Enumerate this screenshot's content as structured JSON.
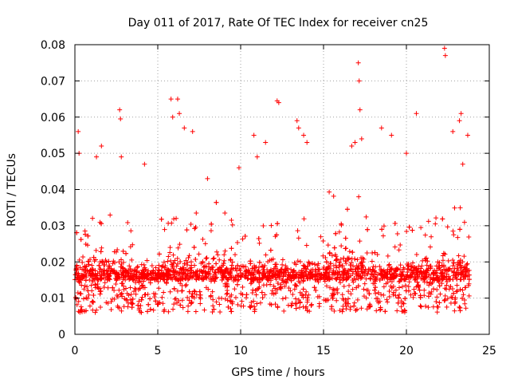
{
  "chart_data": {
    "type": "scatter",
    "title": "Day 011 of 2017, Rate Of TEC Index for receiver cn25",
    "xlabel": "GPS time / hours",
    "ylabel": "ROTI / TECUs",
    "xlim": [
      0,
      25
    ],
    "ylim": [
      0,
      0.08
    ],
    "x_ticks": [
      0,
      5,
      10,
      15,
      20,
      25
    ],
    "x_tick_labels": [
      "0",
      "5",
      "10",
      "15",
      "20",
      "25"
    ],
    "y_ticks": [
      0,
      0.01,
      0.02,
      0.03,
      0.04,
      0.05,
      0.06,
      0.07,
      0.08
    ],
    "y_tick_labels": [
      "0",
      "0.01",
      "0.02",
      "0.03",
      "0.04",
      "0.05",
      "0.06",
      "0.07",
      "0.08"
    ],
    "grid": true,
    "marker": "+",
    "series": [
      {
        "name": "ROTI",
        "color": "#ff0000",
        "x_range": [
          0,
          23.8
        ],
        "typical_range": [
          0.005,
          0.03
        ],
        "outliers": [
          {
            "x": 0.2,
            "y": 0.056
          },
          {
            "x": 0.25,
            "y": 0.05
          },
          {
            "x": 1.3,
            "y": 0.049
          },
          {
            "x": 1.6,
            "y": 0.052
          },
          {
            "x": 2.7,
            "y": 0.062
          },
          {
            "x": 2.75,
            "y": 0.0595
          },
          {
            "x": 2.8,
            "y": 0.049
          },
          {
            "x": 5.8,
            "y": 0.065
          },
          {
            "x": 5.9,
            "y": 0.06
          },
          {
            "x": 6.2,
            "y": 0.065
          },
          {
            "x": 6.3,
            "y": 0.061
          },
          {
            "x": 6.6,
            "y": 0.057
          },
          {
            "x": 7.1,
            "y": 0.056
          },
          {
            "x": 9.9,
            "y": 0.046
          },
          {
            "x": 10.8,
            "y": 0.055
          },
          {
            "x": 11.5,
            "y": 0.053
          },
          {
            "x": 12.2,
            "y": 0.0645
          },
          {
            "x": 12.3,
            "y": 0.064
          },
          {
            "x": 13.4,
            "y": 0.059
          },
          {
            "x": 13.5,
            "y": 0.057
          },
          {
            "x": 13.8,
            "y": 0.055
          },
          {
            "x": 14.0,
            "y": 0.053
          },
          {
            "x": 16.7,
            "y": 0.052
          },
          {
            "x": 16.9,
            "y": 0.053
          },
          {
            "x": 17.1,
            "y": 0.075
          },
          {
            "x": 17.15,
            "y": 0.07
          },
          {
            "x": 17.2,
            "y": 0.062
          },
          {
            "x": 17.3,
            "y": 0.054
          },
          {
            "x": 18.5,
            "y": 0.057
          },
          {
            "x": 19.1,
            "y": 0.055
          },
          {
            "x": 20.0,
            "y": 0.05
          },
          {
            "x": 20.6,
            "y": 0.061
          },
          {
            "x": 22.3,
            "y": 0.079
          },
          {
            "x": 22.35,
            "y": 0.077
          },
          {
            "x": 22.8,
            "y": 0.056
          },
          {
            "x": 23.2,
            "y": 0.059
          },
          {
            "x": 23.3,
            "y": 0.061
          },
          {
            "x": 23.4,
            "y": 0.047
          },
          {
            "x": 23.7,
            "y": 0.055
          },
          {
            "x": 8.0,
            "y": 0.043
          },
          {
            "x": 4.2,
            "y": 0.047
          },
          {
            "x": 11.0,
            "y": 0.049
          }
        ]
      }
    ]
  }
}
